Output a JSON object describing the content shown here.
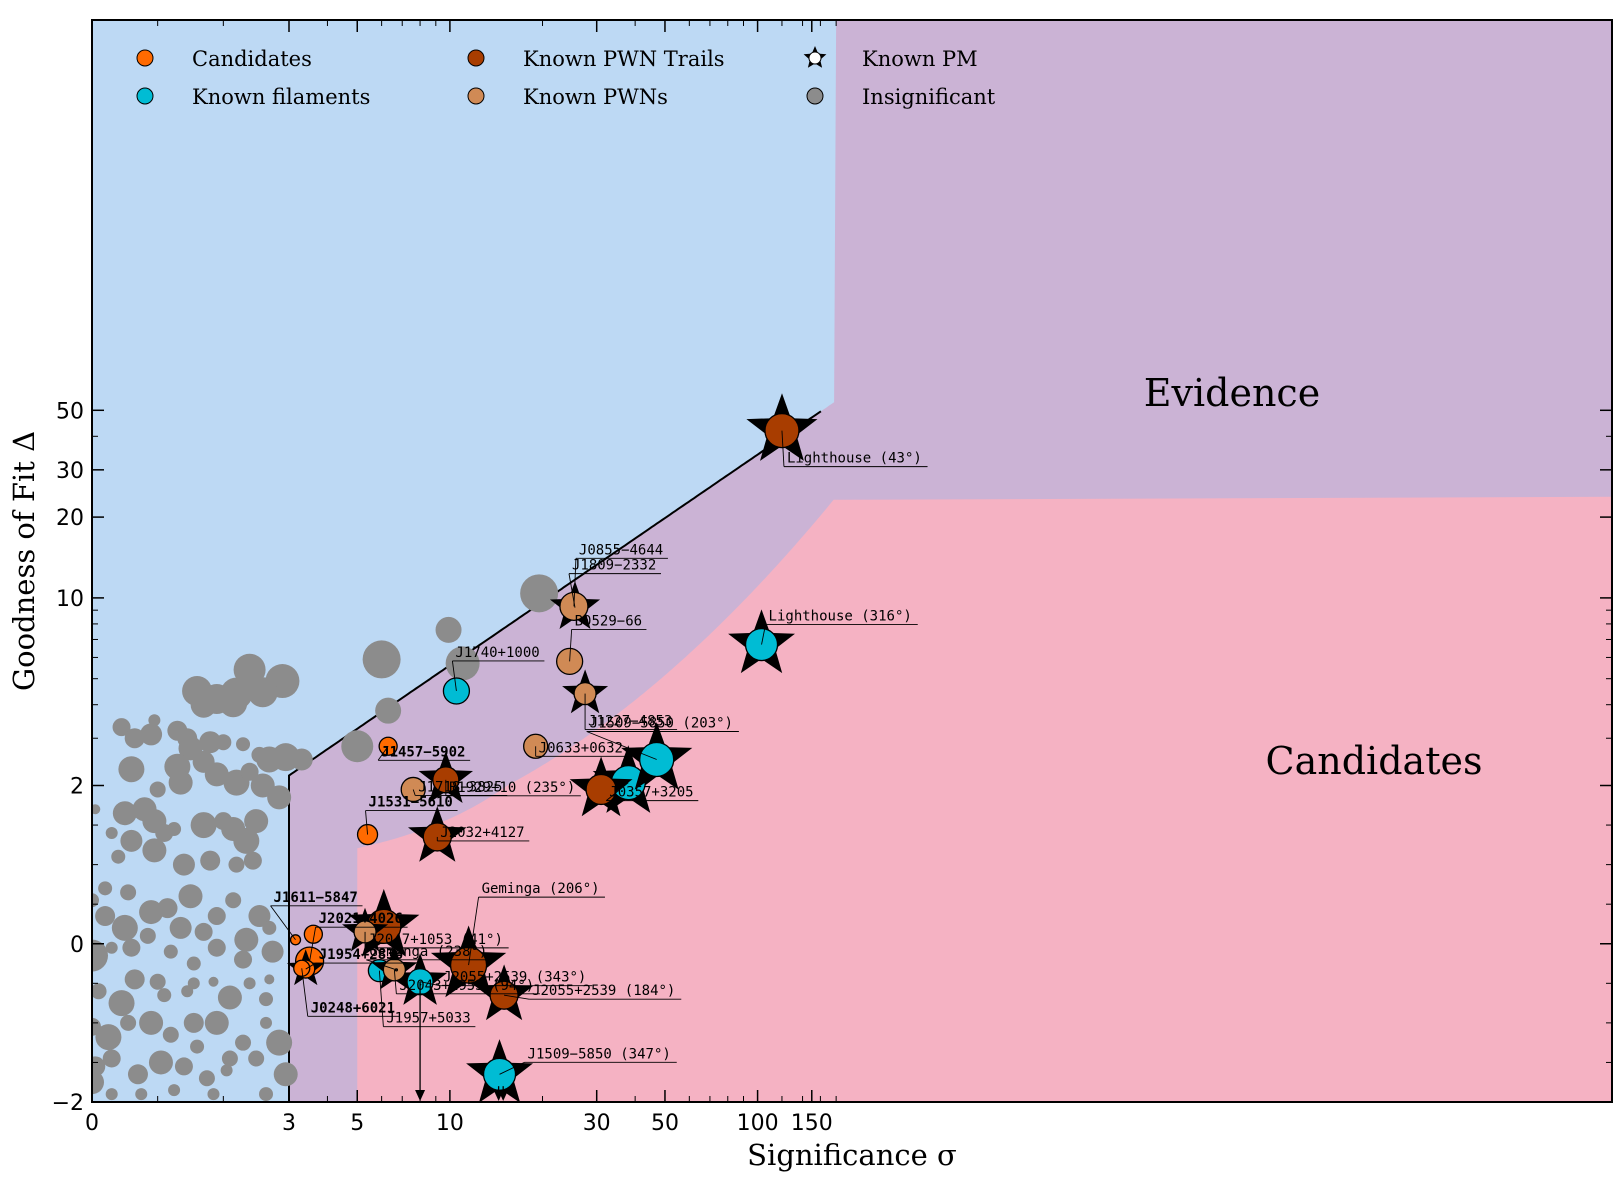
{
  "chart_data": {
    "type": "scatter",
    "xlabel": "Significance σ",
    "ylabel": "Goodness of Fit Δ",
    "xlim": [
      0,
      180
    ],
    "ylim": [
      -2,
      50
    ],
    "x_scale": "piecewise: linear 0-3, logarithmic above 3",
    "y_scale": "piecewise: linear -2 to 2, logarithmic above 2",
    "x_ticks": [
      {
        "value": 0,
        "label": "0"
      },
      {
        "value": 3,
        "label": "3"
      },
      {
        "value": 5,
        "label": "5"
      },
      {
        "value": 10,
        "label": "10"
      },
      {
        "value": 30,
        "label": "30"
      },
      {
        "value": 50,
        "label": "50"
      },
      {
        "value": 100,
        "label": "100"
      },
      {
        "value": 150,
        "label": "150"
      }
    ],
    "y_ticks": [
      {
        "value": -2,
        "label": "−2"
      },
      {
        "value": 0,
        "label": "0"
      },
      {
        "value": 2,
        "label": "2"
      },
      {
        "value": 10,
        "label": "10"
      },
      {
        "value": 20,
        "label": "20"
      },
      {
        "value": 30,
        "label": "30"
      },
      {
        "value": 50,
        "label": "50"
      }
    ],
    "regions": [
      {
        "name": "Evidence",
        "color": "#cbb3d5"
      },
      {
        "name": "Candidates",
        "color": "#f5b2c3"
      },
      {
        "name": "",
        "color": "#bdd9f4"
      }
    ],
    "legend": {
      "placement": "top-left",
      "entries": [
        {
          "label": "Candidates",
          "color": "#ff6a00",
          "marker": "circle"
        },
        {
          "label": "Known filaments",
          "color": "#00bcd4",
          "marker": "circle"
        },
        {
          "label": "Known PWN Trails",
          "color": "#a83d00",
          "marker": "circle"
        },
        {
          "label": "Known PWNs",
          "color": "#d08a55",
          "marker": "circle"
        },
        {
          "label": "Known PM",
          "color": "#ffffff",
          "marker": "star"
        },
        {
          "label": "Insignificant",
          "color": "#8c8c8c",
          "marker": "circle"
        }
      ]
    },
    "series": [
      {
        "name": "Candidates",
        "color": "#ff6a00",
        "points": [
          {
            "x": 3.15,
            "y": 0.05,
            "s": 5,
            "label": "J1611−5847",
            "bold": true
          },
          {
            "x": 3.6,
            "y": 0.12,
            "s": 9,
            "label": "",
            "bold": true
          },
          {
            "x": 3.5,
            "y": -0.22,
            "s": 14,
            "label": "J2021+4026",
            "bold": true
          },
          {
            "x": 3.4,
            "y": -0.32,
            "s": 9,
            "label": "J1954+2836",
            "bold": true,
            "pm": true
          },
          {
            "x": 5.4,
            "y": 1.38,
            "s": 10,
            "label": "J1531−5610",
            "bold": true
          },
          {
            "x": 6.3,
            "y": 2.8,
            "s": 9,
            "label": "J1457−5902",
            "bold": true
          },
          {
            "x": 3.3,
            "y": -0.31,
            "s": 8,
            "label": "J0248+6021",
            "bold": true
          }
        ]
      },
      {
        "name": "Known filaments",
        "color": "#00bcd4",
        "points": [
          {
            "x": 10.5,
            "y": 4.5,
            "s": 13,
            "label": "J1740+1000"
          },
          {
            "x": 5.9,
            "y": -0.34,
            "s": 11,
            "label": "J1957+5033"
          },
          {
            "x": 8.0,
            "y": -0.48,
            "s": 13,
            "label": "J2055+2539 (343°)",
            "pm": true
          },
          {
            "x": 14.5,
            "y": -1.65,
            "s": 16,
            "label": "J1509−5850 (347°)",
            "pm": true
          },
          {
            "x": 38.0,
            "y": 2.05,
            "s": 17,
            "label": "J0357+3205",
            "pm": true
          },
          {
            "x": 47.0,
            "y": 2.5,
            "s": 17,
            "label": "J1509−5850 (203°)",
            "pm": true
          },
          {
            "x": 103.0,
            "y": 6.7,
            "s": 16,
            "label": "Lighthouse (316°)",
            "pm": true
          }
        ]
      },
      {
        "name": "Known PWN Trails",
        "color": "#a83d00",
        "points": [
          {
            "x": 6.1,
            "y": 0.22,
            "s": 17,
            "label": "",
            "pm": true
          },
          {
            "x": 9.1,
            "y": 1.35,
            "s": 14,
            "label": "J2032+4127",
            "pm": true
          },
          {
            "x": 9.7,
            "y": 2.1,
            "s": 13,
            "label": "B1929+10 (235°)",
            "pm": true
          },
          {
            "x": 11.5,
            "y": -0.27,
            "s": 18,
            "label": "Geminga (206°)",
            "pm": true
          },
          {
            "x": 15.0,
            "y": -0.65,
            "s": 14,
            "label": "J2055+2539 (184°)",
            "pm": true
          },
          {
            "x": 31.0,
            "y": 1.95,
            "s": 15,
            "label": "",
            "pm": true
          },
          {
            "x": 25.5,
            "y": 9.2,
            "s": 12,
            "label": "J1809−2332",
            "pm": true
          },
          {
            "x": 120.0,
            "y": 42.0,
            "s": 17,
            "label": "Lighthouse (43°)",
            "pm": true
          }
        ]
      },
      {
        "name": "Known PWNs",
        "color": "#d08a55",
        "points": [
          {
            "x": 25.3,
            "y": 9.3,
            "s": 14,
            "label": "J0855−4644"
          },
          {
            "x": 24.5,
            "y": 5.8,
            "s": 13,
            "label": "B0529−66"
          },
          {
            "x": 27.5,
            "y": 4.4,
            "s": 11,
            "label": "J1227−4853",
            "pm": true
          },
          {
            "x": 19.0,
            "y": 2.8,
            "s": 12,
            "label": "J0633+0632"
          },
          {
            "x": 7.6,
            "y": 1.95,
            "s": 12,
            "label": "J1718−3825"
          },
          {
            "x": 5.3,
            "y": 0.15,
            "s": 11,
            "label": "J2047+1053 (41°)",
            "pm": true
          },
          {
            "x": 6.6,
            "y": -0.33,
            "s": 11,
            "label": "J2043+1953 (94°)",
            "pm": true
          },
          {
            "x": 6.7,
            "y": -0.33,
            "s": 1,
            "label": "Geminga (238°)"
          }
        ]
      },
      {
        "name": "Insignificant",
        "color": "#8c8c8c",
        "points": [
          {
            "x": 6.0,
            "y": 5.9,
            "s": 19
          },
          {
            "x": 6.3,
            "y": 3.8,
            "s": 13
          },
          {
            "x": 11.0,
            "y": 5.7,
            "s": 17
          },
          {
            "x": 9.9,
            "y": 7.6,
            "s": 13
          },
          {
            "x": 19.5,
            "y": 10.4,
            "s": 19
          },
          {
            "x": 5.0,
            "y": 2.8,
            "s": 16
          },
          {
            "x": 2.4,
            "y": 5.4,
            "s": 16
          },
          {
            "x": 2.9,
            "y": 4.9,
            "s": 17
          },
          {
            "x": 1.6,
            "y": 4.5,
            "s": 15
          },
          {
            "x": 1.9,
            "y": 4.2,
            "s": 15
          },
          {
            "x": 2.2,
            "y": 4.4,
            "s": 16
          },
          {
            "x": 2.6,
            "y": 4.45,
            "s": 15
          },
          {
            "x": 1.7,
            "y": 4.0,
            "s": 13
          },
          {
            "x": 2.15,
            "y": 4.05,
            "s": 14
          },
          {
            "x": 1.3,
            "y": 3.2,
            "s": 10
          },
          {
            "x": 1.45,
            "y": 3.0,
            "s": 10
          },
          {
            "x": 0.45,
            "y": 3.3,
            "s": 9
          },
          {
            "x": 0.65,
            "y": 3.0,
            "s": 10
          },
          {
            "x": 0.9,
            "y": 3.1,
            "s": 11
          },
          {
            "x": 0.95,
            "y": 3.5,
            "s": 6
          },
          {
            "x": 1.5,
            "y": 2.75,
            "s": 12
          },
          {
            "x": 1.8,
            "y": 2.9,
            "s": 11
          },
          {
            "x": 2.0,
            "y": 2.9,
            "s": 8
          },
          {
            "x": 2.3,
            "y": 2.85,
            "s": 7
          },
          {
            "x": 2.7,
            "y": 2.5,
            "s": 13
          },
          {
            "x": 2.95,
            "y": 2.55,
            "s": 14
          },
          {
            "x": 3.3,
            "y": 2.5,
            "s": 11
          },
          {
            "x": 2.55,
            "y": 2.6,
            "s": 8
          },
          {
            "x": 0.6,
            "y": 2.3,
            "s": 13
          },
          {
            "x": 1.3,
            "y": 2.35,
            "s": 13
          },
          {
            "x": 1.7,
            "y": 2.45,
            "s": 11
          },
          {
            "x": 1.9,
            "y": 2.2,
            "s": 12
          },
          {
            "x": 2.2,
            "y": 2.05,
            "s": 13
          },
          {
            "x": 1.35,
            "y": 2.05,
            "s": 12
          },
          {
            "x": 1.0,
            "y": 1.95,
            "s": 8
          },
          {
            "x": 2.4,
            "y": 2.25,
            "s": 9
          },
          {
            "x": 2.6,
            "y": 2.0,
            "s": 12
          },
          {
            "x": 2.85,
            "y": 1.85,
            "s": 12
          },
          {
            "x": 0.05,
            "y": 1.7,
            "s": 5
          },
          {
            "x": 0.5,
            "y": 1.65,
            "s": 12
          },
          {
            "x": 0.8,
            "y": 1.7,
            "s": 12
          },
          {
            "x": 0.95,
            "y": 1.55,
            "s": 12
          },
          {
            "x": 1.25,
            "y": 1.45,
            "s": 7
          },
          {
            "x": 2.0,
            "y": 1.55,
            "s": 9
          },
          {
            "x": 2.15,
            "y": 1.45,
            "s": 12
          },
          {
            "x": 1.7,
            "y": 1.5,
            "s": 13
          },
          {
            "x": 2.35,
            "y": 1.3,
            "s": 13
          },
          {
            "x": 2.5,
            "y": 1.55,
            "s": 12
          },
          {
            "x": 0.3,
            "y": 1.4,
            "s": 6
          },
          {
            "x": 0.4,
            "y": 1.1,
            "s": 7
          },
          {
            "x": 0.6,
            "y": 1.3,
            "s": 11
          },
          {
            "x": 0.95,
            "y": 1.18,
            "s": 12
          },
          {
            "x": 1.1,
            "y": 1.4,
            "s": 9
          },
          {
            "x": 1.4,
            "y": 1.0,
            "s": 11
          },
          {
            "x": 1.8,
            "y": 1.05,
            "s": 10
          },
          {
            "x": 2.2,
            "y": 1.0,
            "s": 8
          },
          {
            "x": 2.45,
            "y": 1.05,
            "s": 9
          },
          {
            "x": 0.0,
            "y": 0.55,
            "s": 7
          },
          {
            "x": 0.2,
            "y": 0.7,
            "s": 7
          },
          {
            "x": 0.55,
            "y": 0.65,
            "s": 8
          },
          {
            "x": 0.9,
            "y": 0.4,
            "s": 12
          },
          {
            "x": 1.15,
            "y": 0.45,
            "s": 10
          },
          {
            "x": 1.5,
            "y": 0.6,
            "s": 12
          },
          {
            "x": 1.9,
            "y": 0.35,
            "s": 9
          },
          {
            "x": 2.15,
            "y": 0.55,
            "s": 8
          },
          {
            "x": 2.55,
            "y": 0.35,
            "s": 11
          },
          {
            "x": 0.2,
            "y": 0.35,
            "s": 10
          },
          {
            "x": 0.5,
            "y": 0.2,
            "s": 13
          },
          {
            "x": 0.85,
            "y": 0.1,
            "s": 8
          },
          {
            "x": 1.35,
            "y": 0.2,
            "s": 11
          },
          {
            "x": 1.7,
            "y": 0.15,
            "s": 9
          },
          {
            "x": 2.35,
            "y": 0.05,
            "s": 12
          },
          {
            "x": 2.7,
            "y": 0.2,
            "s": 7
          },
          {
            "x": 0.0,
            "y": -0.15,
            "s": 16
          },
          {
            "x": 0.3,
            "y": -0.05,
            "s": 6
          },
          {
            "x": 0.6,
            "y": -0.05,
            "s": 9
          },
          {
            "x": 1.2,
            "y": -0.1,
            "s": 7
          },
          {
            "x": 1.55,
            "y": -0.25,
            "s": 7
          },
          {
            "x": 1.9,
            "y": -0.05,
            "s": 9
          },
          {
            "x": 2.3,
            "y": -0.2,
            "s": 9
          },
          {
            "x": 2.75,
            "y": -0.1,
            "s": 11
          },
          {
            "x": 0.65,
            "y": -0.45,
            "s": 10
          },
          {
            "x": 1.0,
            "y": -0.48,
            "s": 8
          },
          {
            "x": 1.55,
            "y": -0.5,
            "s": 6
          },
          {
            "x": 1.85,
            "y": -0.48,
            "s": 5
          },
          {
            "x": 2.4,
            "y": -0.5,
            "s": 6
          },
          {
            "x": 2.7,
            "y": -0.45,
            "s": 5
          },
          {
            "x": 0.1,
            "y": -0.6,
            "s": 8
          },
          {
            "x": 0.45,
            "y": -0.75,
            "s": 13
          },
          {
            "x": 1.1,
            "y": -0.65,
            "s": 7
          },
          {
            "x": 1.45,
            "y": -0.6,
            "s": 6
          },
          {
            "x": 2.1,
            "y": -0.68,
            "s": 12
          },
          {
            "x": 2.65,
            "y": -0.7,
            "s": 7
          },
          {
            "x": 0.0,
            "y": -1.05,
            "s": 9
          },
          {
            "x": 0.25,
            "y": -1.18,
            "s": 13
          },
          {
            "x": 0.55,
            "y": -1.0,
            "s": 8
          },
          {
            "x": 0.9,
            "y": -1.0,
            "s": 12
          },
          {
            "x": 1.2,
            "y": -1.15,
            "s": 8
          },
          {
            "x": 1.55,
            "y": -1.0,
            "s": 10
          },
          {
            "x": 1.9,
            "y": -1.0,
            "s": 12
          },
          {
            "x": 2.3,
            "y": -1.25,
            "s": 8
          },
          {
            "x": 2.65,
            "y": -1.0,
            "s": 6
          },
          {
            "x": 0.05,
            "y": -1.55,
            "s": 10
          },
          {
            "x": 0.3,
            "y": -1.45,
            "s": 9
          },
          {
            "x": 0.7,
            "y": -1.65,
            "s": 10
          },
          {
            "x": 1.05,
            "y": -1.5,
            "s": 12
          },
          {
            "x": 1.4,
            "y": -1.55,
            "s": 9
          },
          {
            "x": 1.75,
            "y": -1.7,
            "s": 8
          },
          {
            "x": 2.1,
            "y": -1.45,
            "s": 8
          },
          {
            "x": 2.5,
            "y": -1.45,
            "s": 8
          },
          {
            "x": 0.0,
            "y": -1.75,
            "s": 12
          },
          {
            "x": 0.75,
            "y": -1.9,
            "s": 6
          },
          {
            "x": 1.25,
            "y": -1.85,
            "s": 6
          },
          {
            "x": 1.85,
            "y": -1.9,
            "s": 6
          },
          {
            "x": 2.65,
            "y": -1.9,
            "s": 7
          },
          {
            "x": 2.95,
            "y": -1.65,
            "s": 12
          },
          {
            "x": 2.85,
            "y": -1.25,
            "s": 13
          },
          {
            "x": 0.3,
            "y": -1.9,
            "s": 6
          },
          {
            "x": 1.6,
            "y": -1.3,
            "s": 7
          },
          {
            "x": 2.05,
            "y": -1.6,
            "s": 6
          }
        ]
      }
    ],
    "upper_limit_arrows": [
      {
        "x": 8.0,
        "y_from": -0.48
      },
      {
        "x": 14.4,
        "y_from": -1.8
      },
      {
        "x": 14.9,
        "y_from": -1.8
      }
    ]
  }
}
